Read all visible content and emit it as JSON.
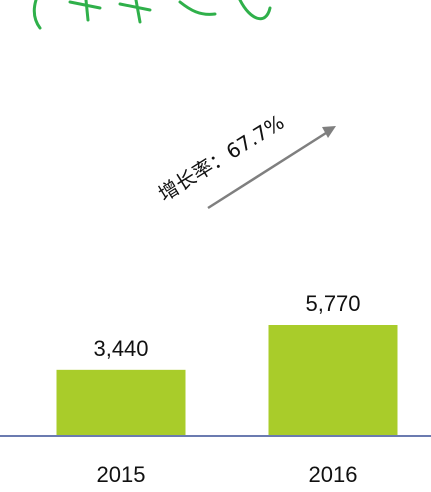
{
  "chart_data": {
    "type": "bar",
    "categories": [
      "2015",
      "2016"
    ],
    "values": [
      3440,
      5770
    ],
    "value_labels": [
      "3,440",
      "5,770"
    ],
    "bar_color": "#a9cc2a",
    "axis_color": "#6b7bb0",
    "arrow_color": "#7f7f7f",
    "annotation": "增长率：67.7%"
  }
}
